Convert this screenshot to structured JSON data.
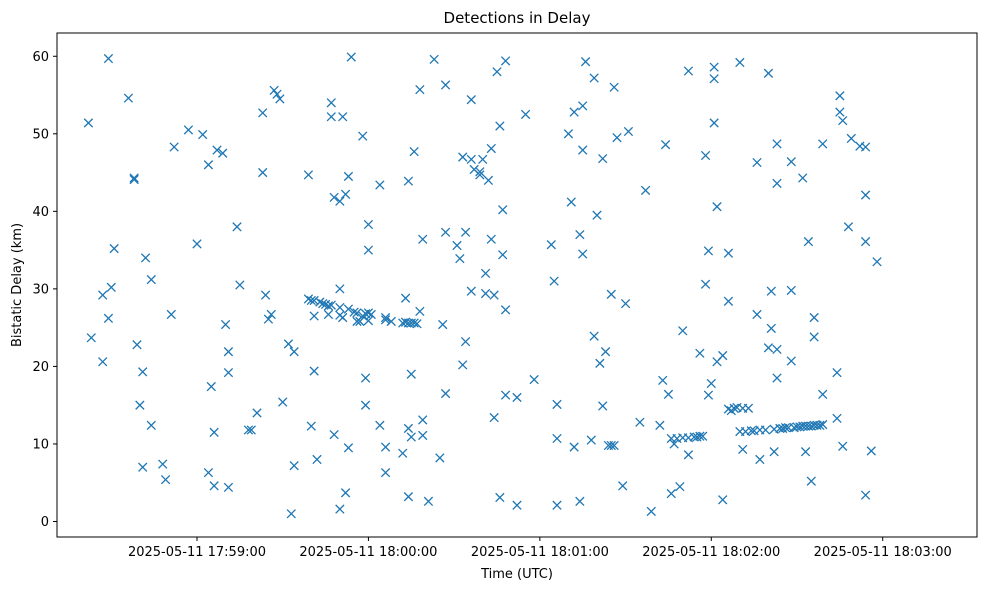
{
  "chart_data": {
    "type": "scatter",
    "title": "Detections in Delay",
    "xlabel": "Time (UTC)",
    "ylabel": "Bistatic Delay (km)",
    "x_axis_kind": "datetime",
    "xlim": [
      "2025-05-11 17:58:11",
      "2025-05-11 18:03:33"
    ],
    "ylim": [
      -2,
      63
    ],
    "x_ticks": [
      "2025-05-11 17:59:00",
      "2025-05-11 18:00:00",
      "2025-05-11 18:01:00",
      "2025-05-11 18:02:00",
      "2025-05-11 18:03:00"
    ],
    "y_ticks": [
      0,
      10,
      20,
      30,
      40,
      50,
      60
    ],
    "grid": false,
    "marker": "x",
    "color": "#1f77b4",
    "points": [
      [
        "17:58:22",
        51.4
      ],
      [
        "17:58:23",
        23.7
      ],
      [
        "17:58:27",
        20.6
      ],
      [
        "17:58:27",
        29.2
      ],
      [
        "17:58:29",
        26.2
      ],
      [
        "17:58:29",
        59.7
      ],
      [
        "17:58:30",
        30.2
      ],
      [
        "17:58:31",
        35.2
      ],
      [
        "17:58:36",
        54.6
      ],
      [
        "17:58:38",
        44.3
      ],
      [
        "17:58:38",
        44.1
      ],
      [
        "17:58:39",
        22.8
      ],
      [
        "17:58:40",
        15.0
      ],
      [
        "17:58:41",
        7.0
      ],
      [
        "17:58:41",
        19.3
      ],
      [
        "17:58:42",
        34.0
      ],
      [
        "17:58:44",
        31.2
      ],
      [
        "17:58:44",
        12.4
      ],
      [
        "17:58:48",
        7.4
      ],
      [
        "17:58:49",
        5.4
      ],
      [
        "17:58:51",
        26.7
      ],
      [
        "17:58:52",
        48.3
      ],
      [
        "17:58:57",
        50.5
      ],
      [
        "17:59:00",
        35.8
      ],
      [
        "17:59:02",
        49.9
      ],
      [
        "17:59:04",
        46.0
      ],
      [
        "17:59:04",
        6.3
      ],
      [
        "17:59:05",
        17.4
      ],
      [
        "17:59:06",
        11.5
      ],
      [
        "17:59:06",
        4.6
      ],
      [
        "17:59:07",
        47.9
      ],
      [
        "17:59:09",
        47.5
      ],
      [
        "17:59:10",
        25.4
      ],
      [
        "17:59:11",
        4.4
      ],
      [
        "17:59:11",
        19.2
      ],
      [
        "17:59:11",
        21.9
      ],
      [
        "17:59:14",
        38.0
      ],
      [
        "17:59:15",
        30.5
      ],
      [
        "17:59:18",
        11.8
      ],
      [
        "17:59:19",
        11.8
      ],
      [
        "17:59:21",
        14.0
      ],
      [
        "17:59:23",
        52.7
      ],
      [
        "17:59:23",
        45.0
      ],
      [
        "17:59:24",
        29.2
      ],
      [
        "17:59:25",
        26.1
      ],
      [
        "17:59:26",
        26.7
      ],
      [
        "17:59:27",
        55.6
      ],
      [
        "17:59:28",
        55.1
      ],
      [
        "17:59:29",
        54.5
      ],
      [
        "17:59:30",
        15.4
      ],
      [
        "17:59:32",
        22.9
      ],
      [
        "17:59:33",
        1.0
      ],
      [
        "17:59:34",
        21.9
      ],
      [
        "17:59:34",
        7.2
      ],
      [
        "17:59:39",
        44.7
      ],
      [
        "17:59:39",
        28.7
      ],
      [
        "17:59:40",
        28.5
      ],
      [
        "17:59:40",
        12.3
      ],
      [
        "17:59:41",
        28.5
      ],
      [
        "17:59:41",
        26.5
      ],
      [
        "17:59:41",
        19.4
      ],
      [
        "17:59:42",
        8.0
      ],
      [
        "17:59:43",
        28.3
      ],
      [
        "17:59:44",
        28.1
      ],
      [
        "17:59:45",
        28.0
      ],
      [
        "17:59:46",
        26.7
      ],
      [
        "17:59:46",
        27.8
      ],
      [
        "17:59:47",
        52.2
      ],
      [
        "17:59:47",
        54.0
      ],
      [
        "17:59:47",
        27.9
      ],
      [
        "17:59:48",
        11.2
      ],
      [
        "17:59:48",
        41.8
      ],
      [
        "17:59:50",
        27.6
      ],
      [
        "17:59:50",
        41.3
      ],
      [
        "17:59:50",
        30.0
      ],
      [
        "17:59:50",
        26.6
      ],
      [
        "17:59:50",
        1.6
      ],
      [
        "17:59:51",
        26.3
      ],
      [
        "17:59:51",
        52.2
      ],
      [
        "17:59:52",
        42.2
      ],
      [
        "17:59:52",
        3.7
      ],
      [
        "17:59:53",
        9.5
      ],
      [
        "17:59:53",
        44.5
      ],
      [
        "17:59:53",
        27.4
      ],
      [
        "17:59:54",
        59.9
      ],
      [
        "17:59:55",
        27.0
      ],
      [
        "17:59:56",
        26.9
      ],
      [
        "17:59:56",
        25.8
      ],
      [
        "17:59:57",
        25.8
      ],
      [
        "17:59:58",
        26.5
      ],
      [
        "17:59:58",
        49.7
      ],
      [
        "17:59:59",
        18.5
      ],
      [
        "17:59:59",
        15.0
      ],
      [
        "17:59:59",
        26.8
      ],
      [
        "18:00:00",
        25.9
      ],
      [
        "18:00:00",
        26.9
      ],
      [
        "18:00:00",
        38.3
      ],
      [
        "18:00:00",
        35.0
      ],
      [
        "18:00:01",
        26.7
      ],
      [
        "18:00:04",
        12.4
      ],
      [
        "18:00:04",
        43.4
      ],
      [
        "18:00:06",
        26.0
      ],
      [
        "18:00:06",
        6.3
      ],
      [
        "18:00:06",
        9.6
      ],
      [
        "18:00:06",
        26.3
      ],
      [
        "18:00:08",
        25.8
      ],
      [
        "18:00:12",
        25.6
      ],
      [
        "18:00:12",
        8.8
      ],
      [
        "18:00:13",
        28.8
      ],
      [
        "18:00:13",
        25.7
      ],
      [
        "18:00:14",
        25.6
      ],
      [
        "18:00:14",
        3.2
      ],
      [
        "18:00:14",
        12.0
      ],
      [
        "18:00:14",
        43.9
      ],
      [
        "18:00:15",
        25.6
      ],
      [
        "18:00:15",
        10.9
      ],
      [
        "18:00:15",
        19.0
      ],
      [
        "18:00:16",
        47.7
      ],
      [
        "18:00:16",
        25.6
      ],
      [
        "18:00:17",
        25.5
      ],
      [
        "18:00:18",
        27.1
      ],
      [
        "18:00:18",
        55.7
      ],
      [
        "18:00:19",
        36.4
      ],
      [
        "18:00:19",
        13.1
      ],
      [
        "18:00:19",
        11.1
      ],
      [
        "18:00:21",
        2.6
      ],
      [
        "18:00:23",
        59.6
      ],
      [
        "18:00:25",
        8.2
      ],
      [
        "18:00:26",
        25.4
      ],
      [
        "18:00:27",
        37.3
      ],
      [
        "18:00:27",
        16.5
      ],
      [
        "18:00:27",
        56.3
      ],
      [
        "18:00:31",
        35.6
      ],
      [
        "18:00:32",
        33.9
      ],
      [
        "18:00:33",
        47.0
      ],
      [
        "18:00:33",
        20.2
      ],
      [
        "18:00:34",
        23.2
      ],
      [
        "18:00:34",
        37.3
      ],
      [
        "18:00:36",
        46.7
      ],
      [
        "18:00:36",
        29.7
      ],
      [
        "18:00:36",
        54.4
      ],
      [
        "18:00:37",
        45.4
      ],
      [
        "18:00:39",
        44.7
      ],
      [
        "18:00:39",
        45.1
      ],
      [
        "18:00:40",
        46.7
      ],
      [
        "18:00:41",
        29.4
      ],
      [
        "18:00:41",
        32.0
      ],
      [
        "18:00:42",
        44.0
      ],
      [
        "18:00:43",
        48.1
      ],
      [
        "18:00:43",
        36.4
      ],
      [
        "18:00:44",
        13.4
      ],
      [
        "18:00:44",
        29.2
      ],
      [
        "18:00:45",
        58.0
      ],
      [
        "18:00:46",
        51.0
      ],
      [
        "18:00:46",
        3.1
      ],
      [
        "18:00:47",
        40.2
      ],
      [
        "18:00:47",
        34.4
      ],
      [
        "18:00:48",
        27.3
      ],
      [
        "18:00:48",
        59.4
      ],
      [
        "18:00:48",
        16.3
      ],
      [
        "18:00:52",
        2.1
      ],
      [
        "18:00:52",
        16.0
      ],
      [
        "18:00:55",
        52.5
      ],
      [
        "18:00:58",
        18.3
      ],
      [
        "18:01:04",
        35.7
      ],
      [
        "18:01:05",
        31.0
      ],
      [
        "18:01:06",
        10.7
      ],
      [
        "18:01:06",
        15.1
      ],
      [
        "18:01:06",
        2.1
      ],
      [
        "18:01:10",
        50.0
      ],
      [
        "18:01:11",
        41.2
      ],
      [
        "18:01:12",
        52.8
      ],
      [
        "18:01:12",
        9.6
      ],
      [
        "18:01:14",
        2.6
      ],
      [
        "18:01:14",
        37.0
      ],
      [
        "18:01:15",
        53.6
      ],
      [
        "18:01:15",
        34.5
      ],
      [
        "18:01:15",
        47.9
      ],
      [
        "18:01:16",
        59.3
      ],
      [
        "18:01:18",
        10.5
      ],
      [
        "18:01:19",
        57.2
      ],
      [
        "18:01:19",
        23.9
      ],
      [
        "18:01:20",
        39.5
      ],
      [
        "18:01:21",
        20.4
      ],
      [
        "18:01:22",
        46.8
      ],
      [
        "18:01:22",
        14.9
      ],
      [
        "18:01:23",
        21.9
      ],
      [
        "18:01:24",
        9.8
      ],
      [
        "18:01:25",
        9.8
      ],
      [
        "18:01:25",
        29.3
      ],
      [
        "18:01:26",
        56.0
      ],
      [
        "18:01:26",
        9.8
      ],
      [
        "18:01:27",
        49.5
      ],
      [
        "18:01:29",
        4.6
      ],
      [
        "18:01:30",
        28.1
      ],
      [
        "18:01:31",
        50.3
      ],
      [
        "18:01:35",
        12.8
      ],
      [
        "18:01:37",
        42.7
      ],
      [
        "18:01:39",
        1.3
      ],
      [
        "18:01:42",
        12.4
      ],
      [
        "18:01:43",
        18.2
      ],
      [
        "18:01:44",
        48.6
      ],
      [
        "18:01:45",
        16.4
      ],
      [
        "18:01:46",
        3.6
      ],
      [
        "18:01:46",
        10.7
      ],
      [
        "18:01:47",
        10.0
      ],
      [
        "18:01:48",
        10.7
      ],
      [
        "18:01:49",
        4.5
      ],
      [
        "18:01:50",
        10.8
      ],
      [
        "18:01:50",
        24.6
      ],
      [
        "18:01:52",
        8.6
      ],
      [
        "18:01:52",
        10.8
      ],
      [
        "18:01:52",
        58.1
      ],
      [
        "18:01:54",
        10.9
      ],
      [
        "18:01:55",
        10.9
      ],
      [
        "18:01:56",
        21.7
      ],
      [
        "18:01:56",
        11.0
      ],
      [
        "18:01:57",
        11.0
      ],
      [
        "18:01:58",
        47.2
      ],
      [
        "18:01:58",
        30.6
      ],
      [
        "18:01:59",
        16.3
      ],
      [
        "18:01:59",
        34.9
      ],
      [
        "18:02:00",
        17.8
      ],
      [
        "18:02:01",
        51.4
      ],
      [
        "18:02:01",
        58.6
      ],
      [
        "18:02:01",
        57.1
      ],
      [
        "18:02:02",
        20.6
      ],
      [
        "18:02:02",
        40.6
      ],
      [
        "18:02:04",
        21.4
      ],
      [
        "18:02:04",
        2.8
      ],
      [
        "18:02:06",
        14.5
      ],
      [
        "18:02:06",
        34.6
      ],
      [
        "18:02:06",
        28.4
      ],
      [
        "18:02:07",
        14.3
      ],
      [
        "18:02:08",
        14.6
      ],
      [
        "18:02:09",
        14.7
      ],
      [
        "18:02:10",
        59.2
      ],
      [
        "18:02:10",
        11.6
      ],
      [
        "18:02:11",
        14.6
      ],
      [
        "18:02:11",
        9.3
      ],
      [
        "18:02:12",
        11.6
      ],
      [
        "18:02:13",
        14.6
      ],
      [
        "18:02:14",
        11.7
      ],
      [
        "18:02:15",
        11.7
      ],
      [
        "18:02:16",
        26.7
      ],
      [
        "18:02:16",
        46.3
      ],
      [
        "18:02:17",
        11.8
      ],
      [
        "18:02:17",
        8.0
      ],
      [
        "18:02:19",
        11.8
      ],
      [
        "18:02:20",
        57.8
      ],
      [
        "18:02:20",
        22.4
      ],
      [
        "18:02:21",
        29.7
      ],
      [
        "18:02:21",
        24.9
      ],
      [
        "18:02:22",
        9.0
      ],
      [
        "18:02:22",
        11.9
      ],
      [
        "18:02:23",
        43.6
      ],
      [
        "18:02:23",
        48.7
      ],
      [
        "18:02:23",
        18.5
      ],
      [
        "18:02:23",
        22.2
      ],
      [
        "18:02:24",
        12.0
      ],
      [
        "18:02:25",
        12.0
      ],
      [
        "18:02:26",
        12.1
      ],
      [
        "18:02:27",
        12.1
      ],
      [
        "18:02:28",
        29.8
      ],
      [
        "18:02:28",
        46.4
      ],
      [
        "18:02:28",
        20.7
      ],
      [
        "18:02:29",
        12.1
      ],
      [
        "18:02:30",
        12.2
      ],
      [
        "18:02:31",
        12.2
      ],
      [
        "18:02:32",
        44.3
      ],
      [
        "18:02:32",
        12.3
      ],
      [
        "18:02:33",
        9.0
      ],
      [
        "18:02:33",
        12.3
      ],
      [
        "18:02:34",
        36.1
      ],
      [
        "18:02:34",
        12.3
      ],
      [
        "18:02:35",
        12.3
      ],
      [
        "18:02:35",
        5.2
      ],
      [
        "18:02:36",
        26.3
      ],
      [
        "18:02:36",
        12.4
      ],
      [
        "18:02:36",
        23.8
      ],
      [
        "18:02:37",
        12.4
      ],
      [
        "18:02:38",
        12.4
      ],
      [
        "18:02:39",
        48.7
      ],
      [
        "18:02:39",
        16.4
      ],
      [
        "18:02:39",
        12.5
      ],
      [
        "18:02:44",
        19.2
      ],
      [
        "18:02:44",
        13.3
      ],
      [
        "18:02:45",
        54.9
      ],
      [
        "18:02:45",
        52.8
      ],
      [
        "18:02:46",
        9.7
      ],
      [
        "18:02:46",
        51.7
      ],
      [
        "18:02:48",
        38.0
      ],
      [
        "18:02:49",
        49.4
      ],
      [
        "18:02:52",
        48.4
      ],
      [
        "18:02:54",
        48.3
      ],
      [
        "18:02:54",
        42.1
      ],
      [
        "18:02:54",
        36.1
      ],
      [
        "18:02:54",
        3.4
      ],
      [
        "18:02:56",
        9.1
      ],
      [
        "18:02:58",
        33.5
      ]
    ]
  }
}
